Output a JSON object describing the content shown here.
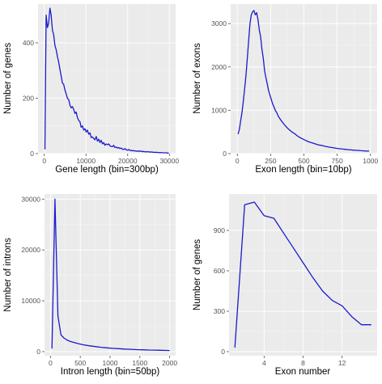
{
  "chart_data": [
    {
      "type": "line",
      "xlabel": "Gene length (bin=300bp)",
      "ylabel": "Number of genes",
      "xlim": [
        -1500,
        31500
      ],
      "ylim": [
        0,
        540
      ],
      "xticks": [
        0,
        10000,
        20000,
        30000
      ],
      "yticks": [
        0,
        200,
        400
      ],
      "x": [
        150,
        450,
        750,
        1050,
        1350,
        1650,
        1950,
        2250,
        2550,
        2850,
        3150,
        3450,
        3750,
        4050,
        4350,
        4650,
        4950,
        5250,
        5550,
        5850,
        6150,
        6450,
        6750,
        7050,
        7350,
        7650,
        7950,
        8250,
        8550,
        8850,
        9150,
        9450,
        9750,
        10050,
        10350,
        10650,
        10950,
        11250,
        11550,
        11850,
        12150,
        12450,
        12750,
        13050,
        13350,
        13650,
        13950,
        14250,
        14550,
        14850,
        15150,
        15450,
        15750,
        16050,
        16350,
        16650,
        16950,
        17250,
        17550,
        17850,
        18150,
        18450,
        18750,
        19050,
        19350,
        19650,
        19950,
        20250,
        20550,
        20850,
        21150,
        21450,
        21750,
        22050,
        22350,
        22650,
        22950,
        23250,
        23550,
        23850,
        24150,
        24450,
        24750,
        25050,
        25350,
        25650,
        25950,
        26250,
        26550,
        26850,
        27150,
        27450,
        27750,
        28050,
        28350,
        28650,
        28950,
        29250,
        29550,
        29850
      ],
      "y": [
        15,
        500,
        455,
        470,
        525,
        500,
        445,
        430,
        390,
        375,
        350,
        330,
        305,
        280,
        255,
        250,
        230,
        215,
        200,
        195,
        175,
        165,
        170,
        160,
        145,
        150,
        130,
        120,
        115,
        95,
        100,
        85,
        90,
        78,
        85,
        70,
        75,
        58,
        60,
        55,
        50,
        62,
        45,
        52,
        40,
        48,
        35,
        40,
        30,
        35,
        32,
        35,
        28,
        26,
        25,
        30,
        22,
        24,
        20,
        22,
        18,
        20,
        16,
        15,
        18,
        14,
        12,
        15,
        11,
        12,
        10,
        11,
        9,
        10,
        8,
        10,
        8,
        9,
        7,
        8,
        6,
        7,
        6,
        7,
        5,
        6,
        5,
        5,
        4,
        5,
        4,
        4,
        3,
        4,
        3,
        3,
        3,
        3,
        2,
        2
      ]
    },
    {
      "type": "line",
      "xlabel": "Exon length (bin=10bp)",
      "ylabel": "Number of exons",
      "xlim": [
        -50,
        1050
      ],
      "ylim": [
        0,
        3450
      ],
      "xticks": [
        0,
        250,
        500,
        750,
        1000
      ],
      "yticks": [
        0,
        1000,
        2000,
        3000
      ],
      "x": [
        5,
        15,
        25,
        35,
        45,
        55,
        65,
        75,
        85,
        95,
        105,
        115,
        125,
        135,
        145,
        155,
        165,
        175,
        185,
        195,
        205,
        215,
        225,
        235,
        245,
        255,
        265,
        275,
        285,
        295,
        310,
        330,
        350,
        370,
        390,
        410,
        430,
        450,
        470,
        490,
        510,
        530,
        550,
        570,
        590,
        610,
        630,
        650,
        670,
        690,
        710,
        730,
        750,
        770,
        790,
        810,
        830,
        850,
        870,
        890,
        910,
        930,
        950,
        970,
        990
      ],
      "y": [
        450,
        550,
        750,
        950,
        1200,
        1500,
        1800,
        2200,
        2600,
        3000,
        3200,
        3270,
        3300,
        3200,
        3250,
        3100,
        2850,
        2700,
        2400,
        2200,
        1900,
        1750,
        1600,
        1450,
        1350,
        1250,
        1150,
        1080,
        1000,
        950,
        850,
        760,
        680,
        610,
        550,
        500,
        460,
        410,
        370,
        340,
        310,
        280,
        260,
        240,
        220,
        200,
        190,
        175,
        160,
        150,
        140,
        130,
        120,
        112,
        104,
        98,
        92,
        86,
        80,
        76,
        72,
        68,
        64,
        60,
        58
      ]
    },
    {
      "type": "line",
      "xlabel": "Intron length (bin=50bp)",
      "ylabel": "Number of introns",
      "xlim": [
        -100,
        2100
      ],
      "ylim": [
        -800,
        31000
      ],
      "xticks": [
        0,
        500,
        1000,
        1500,
        2000
      ],
      "yticks": [
        0,
        10000,
        20000,
        30000
      ],
      "x": [
        25,
        75,
        125,
        175,
        225,
        275,
        325,
        375,
        425,
        475,
        550,
        650,
        750,
        850,
        950,
        1050,
        1150,
        1250,
        1350,
        1450,
        1550,
        1650,
        1750,
        1850,
        1950,
        2000
      ],
      "y": [
        600,
        30000,
        7000,
        3300,
        2700,
        2300,
        2050,
        1850,
        1700,
        1550,
        1350,
        1150,
        1000,
        850,
        750,
        650,
        580,
        500,
        450,
        400,
        360,
        320,
        290,
        260,
        230,
        220
      ]
    },
    {
      "type": "line",
      "xlabel": "Exon number",
      "ylabel": "Number of genes",
      "xlim": [
        0.4,
        15.6
      ],
      "ylim": [
        -30,
        1170
      ],
      "xticks": [
        4,
        8,
        12
      ],
      "yticks": [
        0,
        300,
        600,
        900
      ],
      "x": [
        1,
        2,
        3,
        4,
        5,
        6,
        7,
        8,
        9,
        10,
        11,
        12,
        13,
        14,
        15
      ],
      "y": [
        30,
        1090,
        1110,
        1010,
        990,
        880,
        770,
        660,
        550,
        450,
        380,
        340,
        260,
        200,
        200
      ]
    }
  ]
}
